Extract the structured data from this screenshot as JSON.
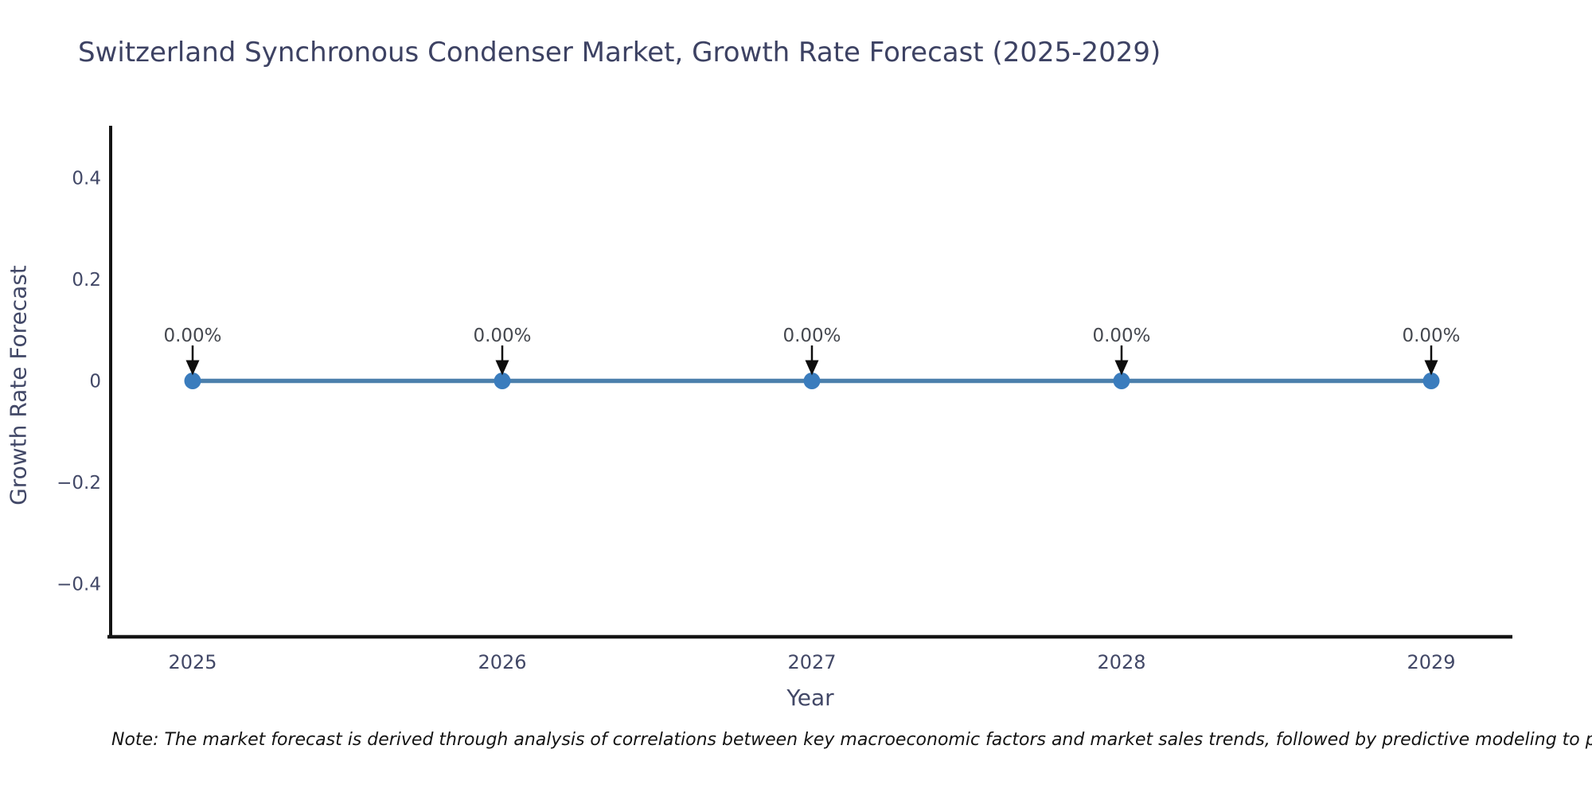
{
  "title": "Switzerland Synchronous Condenser Market, Growth Rate Forecast (2025-2029)",
  "note": "Note: The market forecast is derived through analysis of correlations between key macroeconomic factors and market sales trends, followed by predictive modeling to project future sales.",
  "chart_data": {
    "type": "line",
    "title": "Switzerland Synchronous Condenser Market, Growth Rate Forecast (2025-2029)",
    "xlabel": "Year",
    "ylabel": "Growth Rate Forecast",
    "categories": [
      "2025",
      "2026",
      "2027",
      "2028",
      "2029"
    ],
    "x": [
      2025,
      2026,
      2027,
      2028,
      2029
    ],
    "series": [
      {
        "name": "Growth Rate Forecast",
        "values": [
          0,
          0,
          0,
          0,
          0
        ]
      }
    ],
    "point_labels": [
      "0.00%",
      "0.00%",
      "0.00%",
      "0.00%",
      "0.00%"
    ],
    "ylim": [
      -0.5,
      0.5
    ],
    "yticks": [
      0.4,
      0.2,
      0,
      -0.2,
      -0.4
    ],
    "ytick_labels": [
      "0.4",
      "0.2",
      "0",
      "−0.2",
      "−0.4"
    ],
    "grid": false,
    "legend_position": "none",
    "colors": {
      "line": "#4c80ac",
      "marker": "#3a7cbd",
      "axis": "#141414",
      "arrow": "#0d0d0d",
      "tick_text": "#424867",
      "annotation_text": "#45484f",
      "title_text": "#3d4263",
      "note_text": "#141414"
    }
  }
}
